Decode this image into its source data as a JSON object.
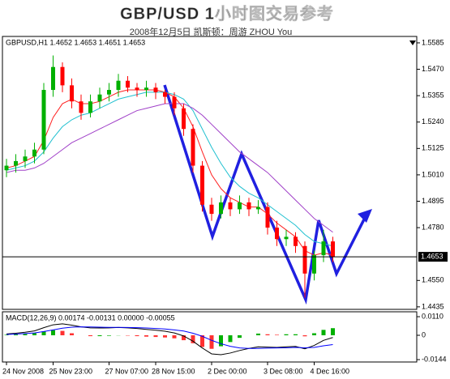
{
  "chart_data": [
    {
      "type": "candlestick",
      "title": "GBP/USD 1小时图交易参考",
      "subtitle": "2008年12月5日  凯斯顿：周游 ZHOU You",
      "symbol_info": "GBPUSD,H1 1.4652 1.4653 1.4651 1.4653",
      "categories": [
        "24 Nov 2008",
        null,
        null,
        null,
        null,
        "25 Nov 23:00",
        null,
        null,
        null,
        null,
        null,
        "27 Nov 07:00",
        null,
        null,
        null,
        null,
        "28 Nov 15:00",
        null,
        null,
        null,
        null,
        null,
        "2 Dec 00:00",
        null,
        null,
        null,
        null,
        null,
        "3 Dec 08:00",
        null,
        null,
        null,
        null,
        "4 Dec 16:00",
        null,
        null
      ],
      "open": [
        1.503,
        1.505,
        1.507,
        1.509,
        1.512,
        1.538,
        1.548,
        1.54,
        1.533,
        1.528,
        1.533,
        1.536,
        1.538,
        1.542,
        1.539,
        1.538,
        1.539,
        1.537,
        1.535,
        1.53,
        1.521,
        1.505,
        1.488,
        1.484,
        1.489,
        1.486,
        1.489,
        1.486,
        1.487,
        1.478,
        1.473,
        1.474,
        1.47,
        1.458,
        1.466,
        1.472
      ],
      "high": [
        1.508,
        1.51,
        1.512,
        1.515,
        1.541,
        1.553,
        1.55,
        1.543,
        1.536,
        1.536,
        1.539,
        1.541,
        1.545,
        1.544,
        1.541,
        1.542,
        1.541,
        1.538,
        1.537,
        1.532,
        1.523,
        1.507,
        1.491,
        1.492,
        1.491,
        1.492,
        1.491,
        1.49,
        1.489,
        1.481,
        1.477,
        1.476,
        1.472,
        1.468,
        1.477,
        1.474
      ],
      "low": [
        1.5,
        1.502,
        1.504,
        1.506,
        1.51,
        1.535,
        1.537,
        1.53,
        1.525,
        1.526,
        1.53,
        1.533,
        1.535,
        1.537,
        1.535,
        1.535,
        1.534,
        1.532,
        1.527,
        1.518,
        1.502,
        1.485,
        1.481,
        1.482,
        1.483,
        1.484,
        1.483,
        1.484,
        1.475,
        1.47,
        1.47,
        1.467,
        1.4475,
        1.455,
        1.463,
        1.463
      ],
      "close": [
        1.505,
        1.507,
        1.509,
        1.512,
        1.538,
        1.548,
        1.54,
        1.533,
        1.528,
        1.533,
        1.536,
        1.538,
        1.542,
        1.539,
        1.538,
        1.539,
        1.537,
        1.535,
        1.53,
        1.521,
        1.505,
        1.488,
        1.484,
        1.489,
        1.486,
        1.489,
        1.486,
        1.487,
        1.478,
        1.473,
        1.474,
        1.47,
        1.458,
        1.466,
        1.472,
        1.4653
      ],
      "up_color": "#00b000",
      "down_color": "#ff0000",
      "series": [
        {
          "color": "#ff2020",
          "values": [
            1.504,
            1.505,
            1.507,
            1.509,
            1.516,
            1.526,
            1.532,
            1.534,
            1.532,
            1.532,
            1.533,
            1.535,
            1.537,
            1.538,
            1.538,
            1.538,
            1.538,
            1.537,
            1.535,
            1.53,
            1.522,
            1.511,
            1.501,
            1.495,
            1.491,
            1.489,
            1.487,
            1.487,
            1.484,
            1.48,
            1.477,
            1.474,
            1.468,
            1.466,
            1.467,
            1.466
          ]
        },
        {
          "color": "#20c0d0",
          "values": [
            1.503,
            1.504,
            1.505,
            1.507,
            1.511,
            1.517,
            1.522,
            1.525,
            1.527,
            1.528,
            1.53,
            1.532,
            1.534,
            1.535,
            1.536,
            1.537,
            1.537,
            1.537,
            1.536,
            1.534,
            1.529,
            1.521,
            1.513,
            1.506,
            1.5,
            1.496,
            1.493,
            1.491,
            1.488,
            1.485,
            1.482,
            1.479,
            1.475,
            1.472,
            1.471,
            1.47
          ]
        },
        {
          "color": "#a040c8",
          "values": [
            1.502,
            1.503,
            1.503,
            1.504,
            1.506,
            1.509,
            1.512,
            1.515,
            1.517,
            1.519,
            1.521,
            1.523,
            1.525,
            1.527,
            1.529,
            1.53,
            1.531,
            1.532,
            1.532,
            1.532,
            1.53,
            1.527,
            1.523,
            1.519,
            1.515,
            1.511,
            1.508,
            1.505,
            1.502,
            1.498,
            1.494,
            1.49,
            1.486,
            1.482,
            1.479,
            1.476
          ]
        }
      ],
      "current_price": 1.4653,
      "ylim": [
        1.4424,
        1.5613
      ],
      "yticks": [
        1.5585,
        {
          "value": 1.547,
          "label": "1.5470"
        },
        1.5355,
        {
          "value": 1.524,
          "label": "1.5240"
        },
        1.5125,
        {
          "value": 1.501,
          "label": "1.5010"
        },
        1.4895,
        {
          "value": 1.478,
          "label": "1.4780"
        },
        {
          "value": 1.455,
          "label": "1.4550"
        },
        1.4435
      ]
    },
    {
      "type": "macd",
      "label": "MACD(12,26,9) 0.00174 -0.00131 0.00000 -0.00055",
      "histogram": [
        0.0003,
        0.0005,
        0.0008,
        0.0012,
        0.0023,
        0.003,
        0.0026,
        0.0012,
        0.0,
        -0.0005,
        -0.0005,
        -0.0003,
        -0.0001,
        -0.0002,
        -0.0005,
        -0.0008,
        -0.001,
        -0.0013,
        -0.0018,
        -0.0029,
        -0.0047,
        -0.0069,
        -0.008,
        -0.0065,
        -0.004,
        -0.0015,
        0.0,
        0.001,
        0.0006,
        0.0003,
        0.0006,
        0.0006,
        -0.0006,
        0.0012,
        0.0032,
        0.0042
      ],
      "up_color": "#00b000",
      "down_color": "#ff3030",
      "series": [
        {
          "color": "#000000",
          "values": [
            0.0008,
            0.0012,
            0.0018,
            0.0026,
            0.0045,
            0.0062,
            0.0068,
            0.006,
            0.005,
            0.0044,
            0.0043,
            0.0044,
            0.0046,
            0.0044,
            0.004,
            0.0035,
            0.003,
            0.0024,
            0.0014,
            -0.0004,
            -0.0035,
            -0.0075,
            -0.011,
            -0.0115,
            -0.0105,
            -0.009,
            -0.0078,
            -0.0068,
            -0.007,
            -0.0072,
            -0.0068,
            -0.0066,
            -0.008,
            -0.006,
            -0.003,
            -0.0013
          ]
        },
        {
          "color": "#0000ff",
          "values": [
            0.0005,
            0.0007,
            0.001,
            0.0014,
            0.0022,
            0.0032,
            0.0042,
            0.0048,
            0.005,
            0.0049,
            0.0048,
            0.0047,
            0.0047,
            0.0046,
            0.0045,
            0.0043,
            0.004,
            0.0037,
            0.0032,
            0.0025,
            0.0012,
            -0.0006,
            -0.003,
            -0.005,
            -0.0065,
            -0.0075,
            -0.0078,
            -0.0078,
            -0.0076,
            -0.0075,
            -0.0074,
            -0.0072,
            -0.0074,
            -0.0072,
            -0.0062,
            -0.0055
          ]
        }
      ],
      "ylim": [
        -0.0158,
        0.0139
      ],
      "yticks": [
        {
          "value": 0.011,
          "label": "0.0110"
        },
        0,
        -0.0144
      ]
    }
  ]
}
